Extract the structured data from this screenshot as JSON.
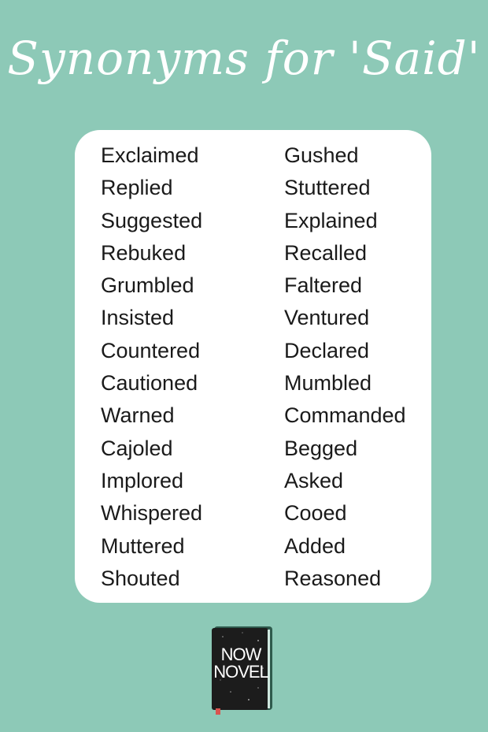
{
  "title": "Synonyms for 'Said'",
  "columns": [
    [
      "Exclaimed",
      "Replied",
      "Suggested",
      "Rebuked",
      "Grumbled",
      "Insisted",
      "Countered",
      "Cautioned",
      "Warned",
      "Cajoled",
      "Implored",
      "Whispered",
      "Muttered",
      "Shouted"
    ],
    [
      "Gushed",
      "Stuttered",
      "Explained",
      "Recalled",
      "Faltered",
      "Ventured",
      "Declared",
      "Mumbled",
      "Commanded",
      "Begged",
      "Asked",
      "Cooed",
      "Added",
      "Reasoned"
    ]
  ],
  "logo": {
    "line1": "NOW",
    "line2": "NOVEL"
  },
  "colors": {
    "background": "#8dc9b7",
    "card": "#ffffff",
    "text": "#1a1a1a",
    "book": "#1c1c1c",
    "bookmark": "#d9534f"
  }
}
